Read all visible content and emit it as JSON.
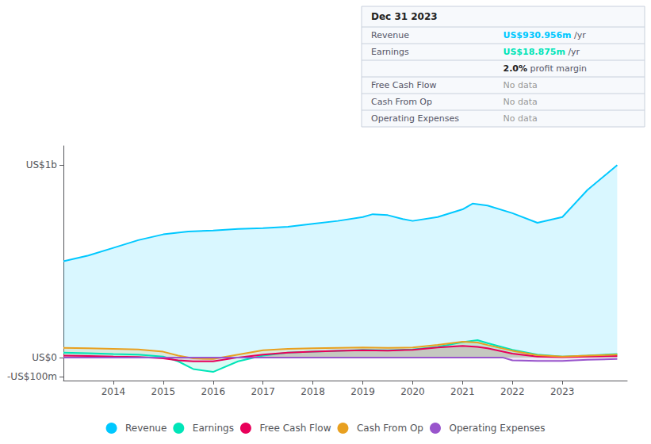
{
  "chart_data": {
    "type": "line",
    "xlim": [
      2013.0,
      2024.3
    ],
    "xticks": [
      2014,
      2015,
      2016,
      2017,
      2018,
      2019,
      2020,
      2021,
      2022,
      2023
    ],
    "ylim": [
      -120,
      1100
    ],
    "yticks": [
      {
        "value": -100,
        "label": "-US$100m"
      },
      {
        "value": 0,
        "label": "US$0"
      },
      {
        "value": 1000,
        "label": "US$1b"
      }
    ],
    "grid": false,
    "legend": "bottom",
    "series": [
      {
        "name": "Revenue",
        "color": "#00c8ff",
        "x": [
          2013.0,
          2013.5,
          2014.0,
          2014.5,
          2015.0,
          2015.5,
          2016.0,
          2016.5,
          2017.0,
          2017.5,
          2018.0,
          2018.5,
          2019.0,
          2019.2,
          2019.5,
          2019.8,
          2020.0,
          2020.5,
          2021.0,
          2021.2,
          2021.5,
          2022.0,
          2022.5,
          2023.0,
          2023.5,
          2024.1
        ],
        "values": [
          500,
          530,
          570,
          610,
          640,
          655,
          660,
          668,
          672,
          680,
          695,
          710,
          730,
          745,
          740,
          720,
          710,
          730,
          770,
          800,
          790,
          750,
          700,
          730,
          870,
          1000
        ]
      },
      {
        "name": "Earnings",
        "color": "#00e5b8",
        "x": [
          2013.0,
          2013.5,
          2014.0,
          2014.5,
          2015.0,
          2015.3,
          2015.6,
          2016.0,
          2016.5,
          2017.0,
          2017.5,
          2018.0,
          2018.5,
          2019.0,
          2019.5,
          2020.0,
          2020.5,
          2021.0,
          2021.3,
          2021.5,
          2022.0,
          2022.5,
          2023.0,
          2023.5,
          2024.1
        ],
        "values": [
          25,
          22,
          18,
          15,
          5,
          -20,
          -60,
          -75,
          -20,
          10,
          25,
          30,
          35,
          40,
          38,
          42,
          55,
          80,
          90,
          75,
          40,
          15,
          5,
          10,
          18
        ]
      },
      {
        "name": "Free Cash Flow",
        "color": "#e8005a",
        "x": [
          2013.0,
          2013.5,
          2014.0,
          2014.5,
          2015.0,
          2015.3,
          2015.6,
          2016.0,
          2016.5,
          2017.0,
          2017.5,
          2018.0,
          2018.5,
          2019.0,
          2019.5,
          2020.0,
          2020.5,
          2021.0,
          2021.3,
          2021.5,
          2022.0,
          2022.5,
          2023.0,
          2023.5,
          2024.1
        ],
        "values": [
          10,
          8,
          5,
          3,
          -5,
          -15,
          -20,
          -20,
          0,
          15,
          25,
          30,
          35,
          38,
          36,
          40,
          52,
          60,
          55,
          48,
          20,
          5,
          2,
          5,
          8
        ]
      },
      {
        "name": "Cash From Op",
        "color": "#e8a020",
        "x": [
          2013.0,
          2013.5,
          2014.0,
          2014.5,
          2015.0,
          2015.3,
          2015.6,
          2016.0,
          2016.5,
          2017.0,
          2017.5,
          2018.0,
          2018.5,
          2019.0,
          2019.5,
          2020.0,
          2020.5,
          2021.0,
          2021.3,
          2021.5,
          2022.0,
          2022.5,
          2023.0,
          2023.5,
          2024.1
        ],
        "values": [
          50,
          48,
          45,
          42,
          30,
          10,
          -5,
          -8,
          15,
          38,
          45,
          48,
          50,
          52,
          50,
          52,
          65,
          82,
          78,
          65,
          35,
          12,
          5,
          10,
          15
        ]
      },
      {
        "name": "Operating Expenses",
        "color": "#9955cc",
        "x": [
          2013.0,
          2021.8,
          2022.0,
          2022.5,
          2023.0,
          2023.5,
          2024.1
        ],
        "values": [
          0,
          0,
          -15,
          -18,
          -18,
          -12,
          -8
        ]
      }
    ],
    "annotations": [
      {
        "text": "Dec 31 2023"
      },
      {
        "label": "Revenue",
        "value": "US$930.956m",
        "suffix": " /yr",
        "color": "#00c8ff"
      },
      {
        "label": "Earnings",
        "value": "US$18.875m",
        "suffix": " /yr",
        "color": "#00e5b8"
      },
      {
        "value": "2.0%",
        "suffix": " profit margin"
      },
      {
        "label": "Free Cash Flow",
        "value": "No data"
      },
      {
        "label": "Cash From Op",
        "value": "No data"
      },
      {
        "label": "Operating Expenses",
        "value": "No data"
      }
    ]
  }
}
